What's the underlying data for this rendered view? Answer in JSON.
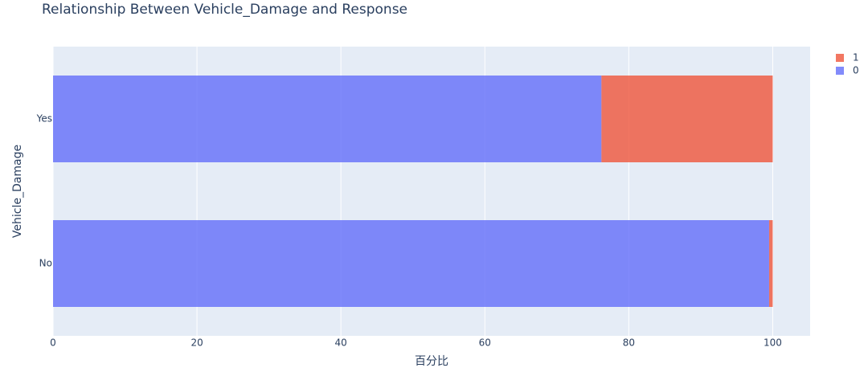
{
  "chart_data": {
    "type": "stacked_hbar",
    "title": "Relationship Between Vehicle_Damage and Response",
    "x_label": "百分比",
    "y_label": "Vehicle_Damage",
    "categories": [
      "No",
      "Yes"
    ],
    "series": [
      {
        "name": "0",
        "color": "#636efa",
        "values": [
          99.5,
          76.2
        ]
      },
      {
        "name": "1",
        "color": "#ef553b",
        "values": [
          0.5,
          23.8
        ]
      }
    ],
    "xlim": [
      0,
      105.2
    ],
    "xticks": [
      0,
      20,
      40,
      60,
      80,
      100
    ],
    "grid": true
  }
}
